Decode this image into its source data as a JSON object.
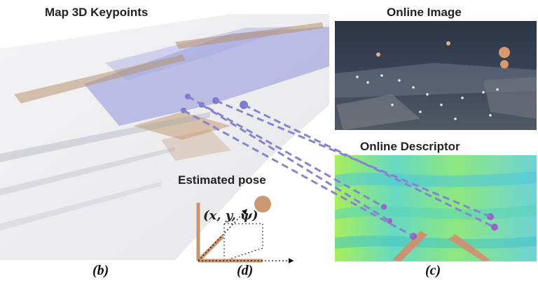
{
  "titles": {
    "map": "Map 3D Keypoints",
    "online_image": "Online  Image",
    "online_descriptor": "Online Descriptor",
    "estimated_pose": "Estimated pose"
  },
  "pose_equation": "(x, y, ψ)",
  "sublabels": {
    "b": "(b)",
    "d": "(d)",
    "c": "(c)"
  },
  "colors": {
    "correspondence_line": "#8585cf",
    "keypoint_map": "#7b7bd0",
    "keypoint_desc": "#9a62c6",
    "pose_axis": "#c8956b",
    "pose_ball": "#c99a72",
    "online_dark": "#3b4557",
    "descriptor_green": "#7ee09a"
  },
  "icons": {
    "point_cloud": "point-cloud-icon",
    "camera_image": "camera-image-icon",
    "heatmap": "descriptor-heatmap-icon",
    "pose_axes": "pose-axes-icon"
  }
}
